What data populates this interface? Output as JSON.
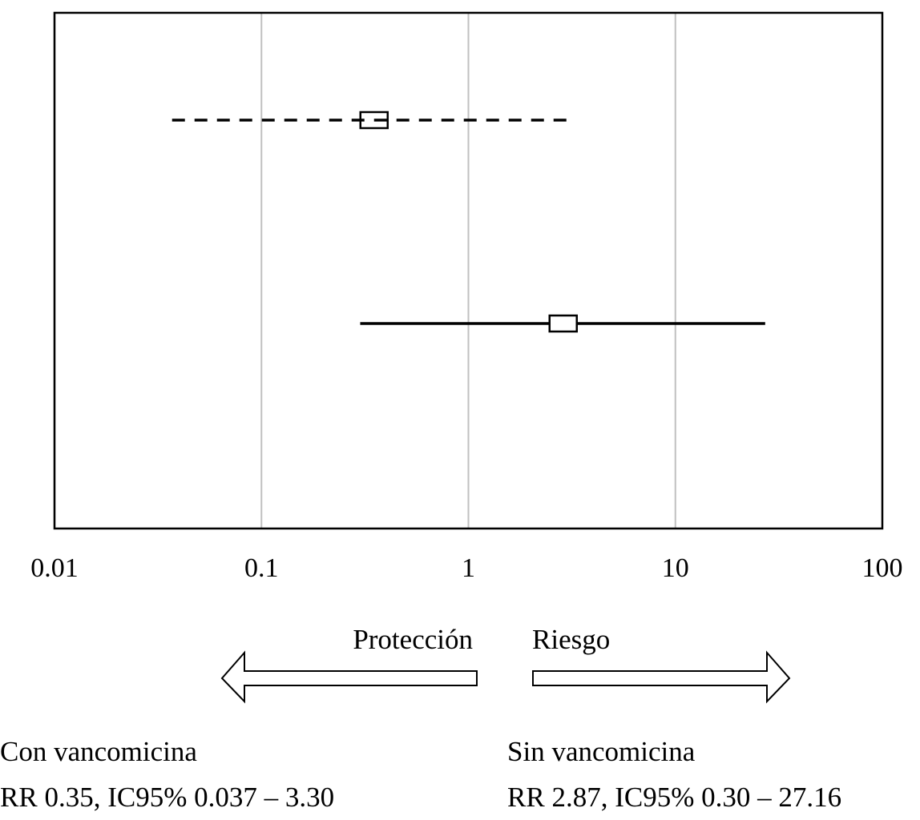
{
  "chart_data": {
    "type": "forest",
    "xscale": "log",
    "xlim": [
      0.01,
      100
    ],
    "xticks": [
      "0.01",
      "0.1",
      "1",
      "10",
      "100"
    ],
    "xtick_values": [
      0.01,
      0.1,
      1,
      10,
      100
    ],
    "grid": "vertical",
    "series": [
      {
        "name": "Con vancomicina",
        "rr": 0.35,
        "ci_low": 0.037,
        "ci_high": 3.3,
        "line_style": "dashed",
        "stat_label": "RR 0.35, IC95% 0.037 – 3.30"
      },
      {
        "name": "Sin vancomicina",
        "rr": 2.87,
        "ci_low": 0.3,
        "ci_high": 27.16,
        "line_style": "solid",
        "stat_label": "RR 2.87, IC95% 0.30 – 27.16"
      }
    ],
    "direction_labels": {
      "left": "Protección",
      "right": "Riesgo"
    },
    "colors": {
      "gridline": "#c0c0c0",
      "ink": "#000000"
    }
  }
}
